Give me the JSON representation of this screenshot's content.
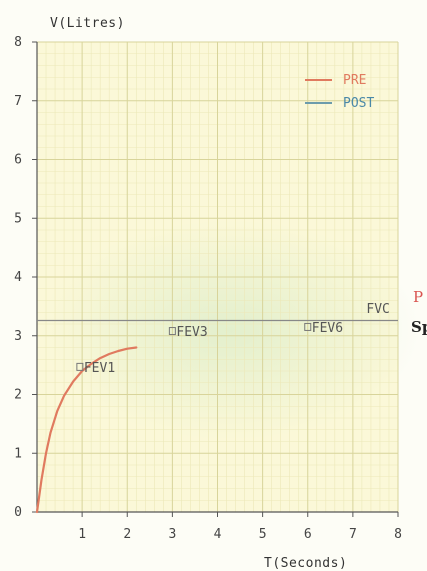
{
  "chart_data": {
    "type": "line",
    "xlabel": "T(Seconds)",
    "ylabel": "V(Litres)",
    "xlim": [
      0,
      8
    ],
    "ylim": [
      0,
      8
    ],
    "x_ticks": [
      "1",
      "2",
      "3",
      "4",
      "5",
      "6",
      "7",
      "8"
    ],
    "y_ticks": [
      "0",
      "1",
      "2",
      "3",
      "4",
      "5",
      "6",
      "7",
      "8"
    ],
    "grid": true,
    "legend_position": "top-right",
    "series": [
      {
        "name": "PRE",
        "color": "#e07a5f",
        "x": [
          0,
          0.1,
          0.2,
          0.3,
          0.45,
          0.6,
          0.8,
          1.0,
          1.2,
          1.4,
          1.6,
          1.8,
          2.0,
          2.2
        ],
        "y": [
          0,
          0.55,
          1.0,
          1.35,
          1.72,
          1.98,
          2.22,
          2.4,
          2.52,
          2.62,
          2.69,
          2.74,
          2.78,
          2.8
        ]
      },
      {
        "name": "POST",
        "color": "#6d9cac",
        "x": [],
        "y": []
      }
    ],
    "reference_line": {
      "y": 3.26,
      "color": "#888888"
    },
    "markers": [
      {
        "label": "FEV1",
        "x": 0.95,
        "y": 2.47
      },
      {
        "label": "FEV3",
        "x": 3.0,
        "y": 3.08
      },
      {
        "label": "FEV6",
        "x": 6.0,
        "y": 3.15
      },
      {
        "label": "FVC",
        "x": 7.3,
        "y": 3.35
      }
    ]
  },
  "edge_text": {
    "line1": "P",
    "line1_color": "#d9534f",
    "line2": "Sp",
    "line2_color": "#222222"
  }
}
